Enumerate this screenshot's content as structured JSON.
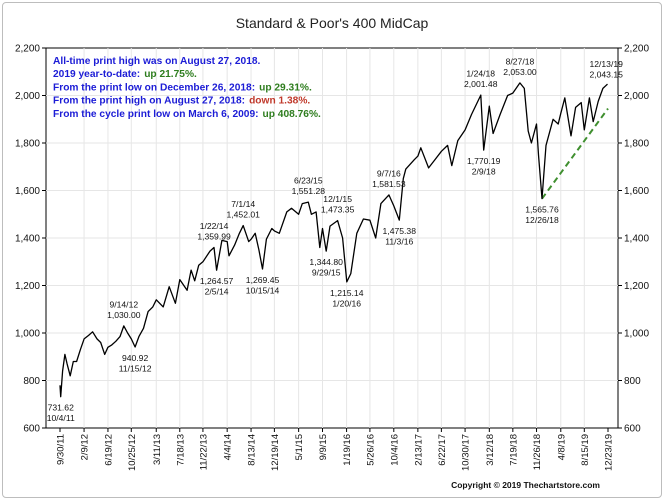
{
  "colors": {
    "info_text": "#1c1cd6",
    "positive": "#2e7d1e",
    "negative": "#c0392b",
    "price_line": "#000000",
    "trend_line": "#3f8f2f",
    "grid": "#e6e6e6"
  },
  "copyright": "Copyright © 2019 Thechartstore.com",
  "info_box": [
    {
      "label": "All-time print high was on August 27, 2018.",
      "value": "",
      "value_color": ""
    },
    {
      "label": "2019 year-to-date:",
      "value": "up 21.75%.",
      "value_color": "positive"
    },
    {
      "label": "From the print low on December 26, 2018:",
      "value": "up 29.31%.",
      "value_color": "positive"
    },
    {
      "label": "From the print high on August 27, 2018:",
      "value": "down 1.38%.",
      "value_color": "negative"
    },
    {
      "label": "From the cycle print low on March 6, 2009:",
      "value": "up 408.76%.",
      "value_color": "positive"
    }
  ],
  "chart_data": {
    "type": "line",
    "title": "Standard & Poor's 400 MidCap",
    "xlabel": "",
    "ylabel": "",
    "ylim": [
      600,
      2200
    ],
    "y_ticks": [
      600,
      800,
      1000,
      1200,
      1400,
      1600,
      1800,
      2000,
      2200
    ],
    "y_tick_labels": [
      "600",
      "800",
      "1,000",
      "1,200",
      "1,400",
      "1,600",
      "1,800",
      "2,000",
      "2,200"
    ],
    "x_range": [
      "2011-09-30",
      "2019-12-23"
    ],
    "x_ticks": [
      {
        "date": "2011-09-30",
        "label": "9/30/11"
      },
      {
        "date": "2012-02-09",
        "label": "2/9/12"
      },
      {
        "date": "2012-06-19",
        "label": "6/19/12"
      },
      {
        "date": "2012-10-25",
        "label": "10/25/12"
      },
      {
        "date": "2013-03-11",
        "label": "3/11/13"
      },
      {
        "date": "2013-07-18",
        "label": "7/18/13"
      },
      {
        "date": "2013-11-22",
        "label": "11/22/13"
      },
      {
        "date": "2014-04-04",
        "label": "4/4/14"
      },
      {
        "date": "2014-08-13",
        "label": "8/13/14"
      },
      {
        "date": "2014-12-19",
        "label": "12/19/14"
      },
      {
        "date": "2015-05-01",
        "label": "5/1/15"
      },
      {
        "date": "2015-09-09",
        "label": "9/9/15"
      },
      {
        "date": "2016-01-19",
        "label": "1/19/16"
      },
      {
        "date": "2016-05-26",
        "label": "5/26/16"
      },
      {
        "date": "2016-10-04",
        "label": "10/4/16"
      },
      {
        "date": "2017-02-13",
        "label": "2/13/17"
      },
      {
        "date": "2017-06-22",
        "label": "6/22/17"
      },
      {
        "date": "2017-10-30",
        "label": "10/30/17"
      },
      {
        "date": "2018-03-12",
        "label": "3/12/18"
      },
      {
        "date": "2018-07-19",
        "label": "7/19/18"
      },
      {
        "date": "2018-11-26",
        "label": "11/26/18"
      },
      {
        "date": "2019-04-08",
        "label": "4/8/19"
      },
      {
        "date": "2019-08-15",
        "label": "8/15/19"
      },
      {
        "date": "2019-12-23",
        "label": "12/23/19"
      }
    ],
    "grid": true,
    "series": [
      {
        "name": "",
        "points": [
          [
            "2011-09-30",
            780
          ],
          [
            "2011-10-04",
            731.62
          ],
          [
            "2011-10-14",
            840
          ],
          [
            "2011-10-27",
            910
          ],
          [
            "2011-11-08",
            870
          ],
          [
            "2011-11-25",
            820
          ],
          [
            "2011-12-12",
            880
          ],
          [
            "2011-12-30",
            880
          ],
          [
            "2012-01-20",
            930
          ],
          [
            "2012-02-09",
            975
          ],
          [
            "2012-03-05",
            990
          ],
          [
            "2012-03-27",
            1005
          ],
          [
            "2012-04-20",
            975
          ],
          [
            "2012-05-10",
            960
          ],
          [
            "2012-06-01",
            910
          ],
          [
            "2012-06-19",
            940
          ],
          [
            "2012-07-10",
            950
          ],
          [
            "2012-08-01",
            965
          ],
          [
            "2012-08-24",
            985
          ],
          [
            "2012-09-14",
            1030
          ],
          [
            "2012-10-05",
            1000
          ],
          [
            "2012-10-25",
            975
          ],
          [
            "2012-11-15",
            940.92
          ],
          [
            "2012-12-06",
            985
          ],
          [
            "2012-12-31",
            1020
          ],
          [
            "2013-01-25",
            1090
          ],
          [
            "2013-02-20",
            1110
          ],
          [
            "2013-03-11",
            1140
          ],
          [
            "2013-04-18",
            1110
          ],
          [
            "2013-05-21",
            1195
          ],
          [
            "2013-06-24",
            1125
          ],
          [
            "2013-07-18",
            1225
          ],
          [
            "2013-08-27",
            1180
          ],
          [
            "2013-09-18",
            1265
          ],
          [
            "2013-10-08",
            1220
          ],
          [
            "2013-10-30",
            1285
          ],
          [
            "2013-11-22",
            1300
          ],
          [
            "2013-12-31",
            1345
          ],
          [
            "2014-01-22",
            1359.99
          ],
          [
            "2014-02-05",
            1264.57
          ],
          [
            "2014-03-06",
            1390
          ],
          [
            "2014-04-04",
            1385
          ],
          [
            "2014-04-14",
            1325
          ],
          [
            "2014-05-15",
            1370
          ],
          [
            "2014-06-10",
            1420
          ],
          [
            "2014-07-01",
            1452.01
          ],
          [
            "2014-07-31",
            1385
          ],
          [
            "2014-08-13",
            1395
          ],
          [
            "2014-09-05",
            1420
          ],
          [
            "2014-09-25",
            1350
          ],
          [
            "2014-10-15",
            1269.45
          ],
          [
            "2014-11-05",
            1395
          ],
          [
            "2014-12-05",
            1440
          ],
          [
            "2014-12-19",
            1430
          ],
          [
            "2015-01-15",
            1420
          ],
          [
            "2015-02-25",
            1510
          ],
          [
            "2015-03-23",
            1525
          ],
          [
            "2015-05-01",
            1500
          ],
          [
            "2015-05-21",
            1545
          ],
          [
            "2015-06-23",
            1551.28
          ],
          [
            "2015-07-10",
            1500
          ],
          [
            "2015-08-05",
            1510
          ],
          [
            "2015-08-25",
            1360
          ],
          [
            "2015-09-09",
            1440
          ],
          [
            "2015-09-29",
            1344.8
          ],
          [
            "2015-10-20",
            1450
          ],
          [
            "2015-12-01",
            1473.35
          ],
          [
            "2015-12-28",
            1400
          ],
          [
            "2016-01-20",
            1215.14
          ],
          [
            "2016-02-11",
            1250
          ],
          [
            "2016-03-15",
            1420
          ],
          [
            "2016-04-20",
            1480
          ],
          [
            "2016-05-26",
            1475
          ],
          [
            "2016-06-27",
            1400
          ],
          [
            "2016-07-25",
            1545
          ],
          [
            "2016-09-07",
            1581.53
          ],
          [
            "2016-10-04",
            1535
          ],
          [
            "2016-11-03",
            1475.38
          ],
          [
            "2016-11-25",
            1650
          ],
          [
            "2016-12-09",
            1690
          ],
          [
            "2017-01-25",
            1730
          ],
          [
            "2017-02-13",
            1745
          ],
          [
            "2017-03-01",
            1780
          ],
          [
            "2017-04-13",
            1695
          ],
          [
            "2017-05-18",
            1730
          ],
          [
            "2017-06-22",
            1765
          ],
          [
            "2017-07-26",
            1790
          ],
          [
            "2017-08-18",
            1705
          ],
          [
            "2017-09-20",
            1810
          ],
          [
            "2017-10-30",
            1855
          ],
          [
            "2017-12-04",
            1920
          ],
          [
            "2018-01-24",
            2001.48
          ],
          [
            "2018-02-09",
            1770.19
          ],
          [
            "2018-03-12",
            1955
          ],
          [
            "2018-04-02",
            1840
          ],
          [
            "2018-05-10",
            1920
          ],
          [
            "2018-06-20",
            2000
          ],
          [
            "2018-07-19",
            2010
          ],
          [
            "2018-08-27",
            2053
          ],
          [
            "2018-09-20",
            2030
          ],
          [
            "2018-10-11",
            1850
          ],
          [
            "2018-10-29",
            1800
          ],
          [
            "2018-11-26",
            1880
          ],
          [
            "2018-12-07",
            1750
          ],
          [
            "2018-12-26",
            1565.76
          ],
          [
            "2019-01-17",
            1790
          ],
          [
            "2019-02-25",
            1900
          ],
          [
            "2019-03-25",
            1880
          ],
          [
            "2019-04-08",
            1925
          ],
          [
            "2019-04-30",
            1990
          ],
          [
            "2019-06-03",
            1830
          ],
          [
            "2019-06-28",
            1950
          ],
          [
            "2019-07-29",
            1970
          ],
          [
            "2019-08-15",
            1855
          ],
          [
            "2019-09-12",
            1990
          ],
          [
            "2019-10-03",
            1890
          ],
          [
            "2019-10-30",
            1975
          ],
          [
            "2019-11-25",
            2030
          ],
          [
            "2019-12-13",
            2043.15
          ],
          [
            "2019-12-20",
            2048
          ]
        ]
      }
    ],
    "trend_line": {
      "start": [
        "2018-12-26",
        1565.76
      ],
      "end": [
        "2019-12-23",
        1945
      ]
    },
    "annotations": [
      {
        "date": "2011-10-04",
        "value": 731.62,
        "lines": [
          "731.62",
          "10/4/11"
        ],
        "position": "below"
      },
      {
        "date": "2012-09-14",
        "value": 1030,
        "lines": [
          "9/14/12",
          "1,030.00"
        ],
        "position": "above"
      },
      {
        "date": "2012-11-15",
        "value": 940.92,
        "lines": [
          "940.92",
          "11/15/12"
        ],
        "position": "below"
      },
      {
        "date": "2014-01-22",
        "value": 1359.99,
        "lines": [
          "1/22/14",
          "1,359.99"
        ],
        "position": "above"
      },
      {
        "date": "2014-02-05",
        "value": 1264.57,
        "lines": [
          "1,264.57",
          "2/5/14"
        ],
        "position": "below"
      },
      {
        "date": "2014-07-01",
        "value": 1452.01,
        "lines": [
          "7/1/14",
          "1,452.01"
        ],
        "position": "above"
      },
      {
        "date": "2014-10-15",
        "value": 1269.45,
        "lines": [
          "1,269.45",
          "10/15/14"
        ],
        "position": "below"
      },
      {
        "date": "2015-06-23",
        "value": 1551.28,
        "lines": [
          "6/23/15",
          "1,551.28"
        ],
        "position": "above"
      },
      {
        "date": "2015-09-29",
        "value": 1344.8,
        "lines": [
          "1,344.80",
          "9/29/15"
        ],
        "position": "below"
      },
      {
        "date": "2015-12-01",
        "value": 1473.35,
        "lines": [
          "12/1/15",
          "1,473.35"
        ],
        "position": "above"
      },
      {
        "date": "2016-01-20",
        "value": 1215.14,
        "lines": [
          "1,215.14",
          "1/20/16"
        ],
        "position": "below"
      },
      {
        "date": "2016-09-07",
        "value": 1581.53,
        "lines": [
          "9/7/16",
          "1,581.53"
        ],
        "position": "above"
      },
      {
        "date": "2016-11-03",
        "value": 1475.38,
        "lines": [
          "1,475.38",
          "11/3/16"
        ],
        "position": "below"
      },
      {
        "date": "2018-01-24",
        "value": 2001.48,
        "lines": [
          "1/24/18",
          "2,001.48"
        ],
        "position": "above"
      },
      {
        "date": "2018-02-09",
        "value": 1770.19,
        "lines": [
          "1,770.19",
          "2/9/18"
        ],
        "position": "below"
      },
      {
        "date": "2018-08-27",
        "value": 2053,
        "lines": [
          "8/27/18",
          "2,053.00"
        ],
        "position": "above"
      },
      {
        "date": "2018-12-26",
        "value": 1565.76,
        "lines": [
          "1,565.76",
          "12/26/18"
        ],
        "position": "below"
      },
      {
        "date": "2019-12-13",
        "value": 2043.15,
        "lines": [
          "12/13/19",
          "2,043.15"
        ],
        "position": "above"
      }
    ]
  }
}
